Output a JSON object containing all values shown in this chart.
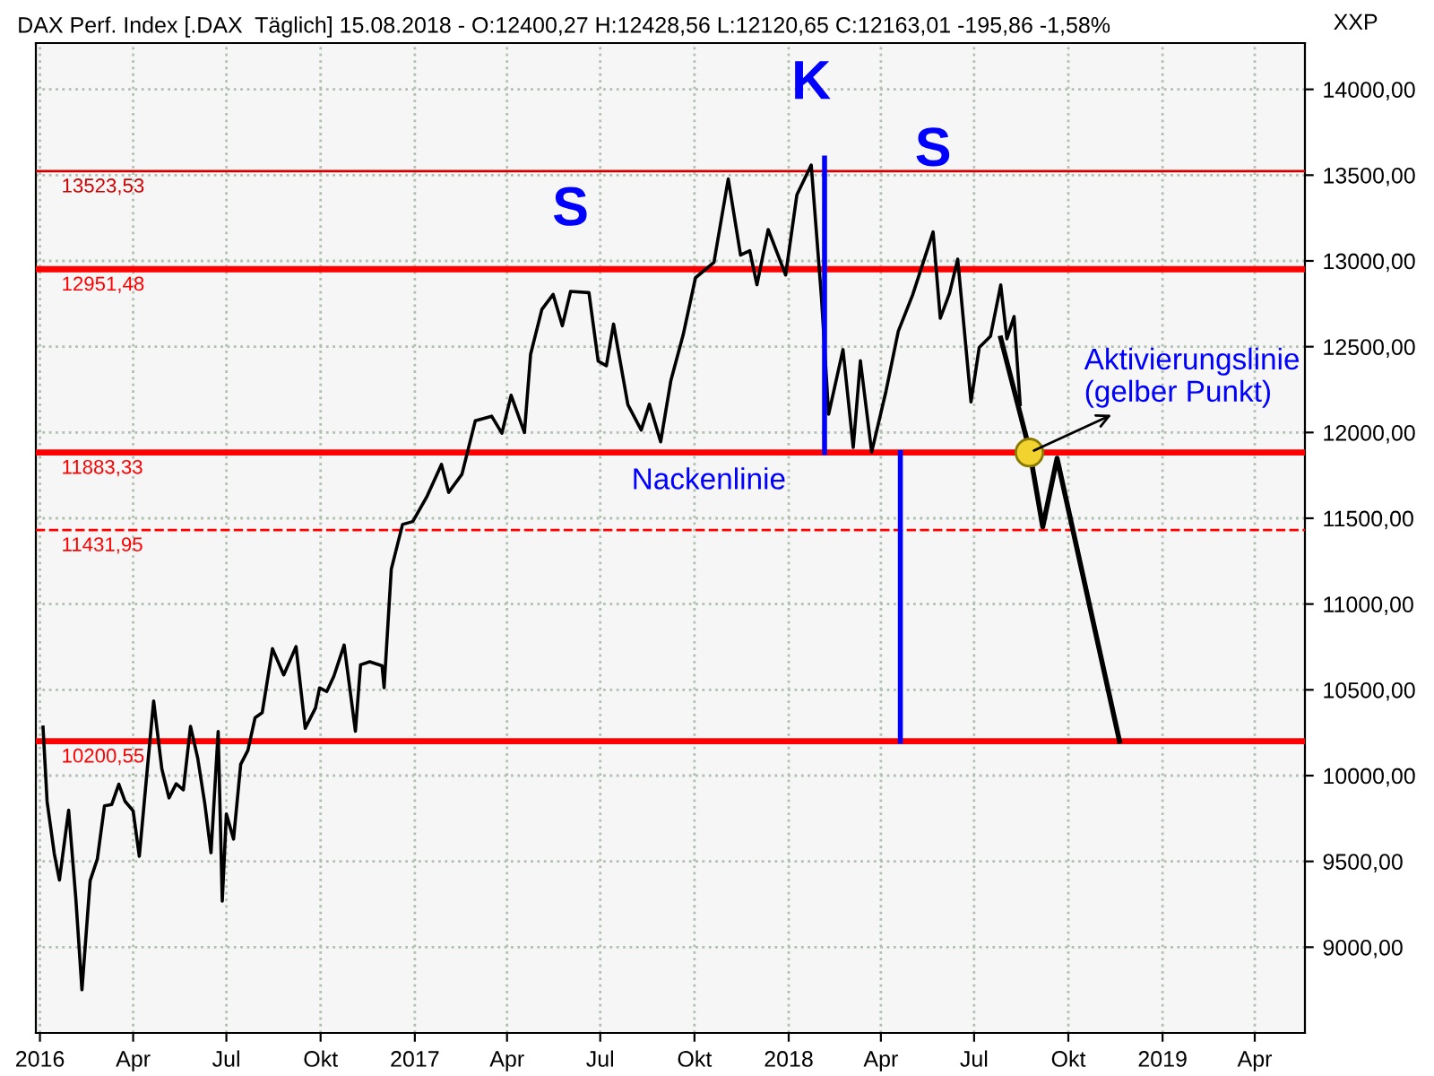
{
  "chart_data": {
    "type": "line",
    "title": "DAX Perf. Index [.DAX  Täglich] 15.08.2018 - O:12400,27 H:12428,56 L:12120,65 C:12163,01 -195,86 -1,58%",
    "ylabel": "XXP",
    "series": [
      {
        "color": "#000000",
        "x": [
          "2016-01-04",
          "2016-01-08",
          "2016-01-15",
          "2016-01-20",
          "2016-01-29",
          "2016-02-05",
          "2016-02-11",
          "2016-02-19",
          "2016-02-26",
          "2016-03-04",
          "2016-03-11",
          "2016-03-18",
          "2016-03-24",
          "2016-04-01",
          "2016-04-07",
          "2016-04-15",
          "2016-04-21",
          "2016-04-29",
          "2016-05-06",
          "2016-05-13",
          "2016-05-20",
          "2016-05-27",
          "2016-06-03",
          "2016-06-10",
          "2016-06-16",
          "2016-06-23",
          "2016-06-27",
          "2016-07-01",
          "2016-07-08",
          "2016-07-15",
          "2016-07-22",
          "2016-07-29",
          "2016-08-05",
          "2016-08-15",
          "2016-08-26",
          "2016-09-07",
          "2016-09-16",
          "2016-09-26",
          "2016-09-30",
          "2016-10-07",
          "2016-10-14",
          "2016-10-24",
          "2016-11-04",
          "2016-11-09",
          "2016-11-18",
          "2016-11-30",
          "2016-12-02",
          "2016-12-09",
          "2016-12-20",
          "2016-12-30",
          "2017-01-13",
          "2017-01-27",
          "2017-02-03",
          "2017-02-16",
          "2017-03-01",
          "2017-03-17",
          "2017-03-27",
          "2017-04-05",
          "2017-04-18",
          "2017-04-24",
          "2017-05-05",
          "2017-05-16",
          "2017-05-25",
          "2017-06-02",
          "2017-06-20",
          "2017-06-29",
          "2017-07-07",
          "2017-07-14",
          "2017-07-28",
          "2017-08-10",
          "2017-08-18",
          "2017-08-29",
          "2017-09-08",
          "2017-09-20",
          "2017-10-02",
          "2017-10-20",
          "2017-11-03",
          "2017-11-15",
          "2017-11-24",
          "2017-12-01",
          "2017-12-12",
          "2017-12-29",
          "2018-01-09",
          "2018-01-23",
          "2018-02-02",
          "2018-02-09",
          "2018-02-23",
          "2018-03-05",
          "2018-03-12",
          "2018-03-23",
          "2018-04-06",
          "2018-04-18",
          "2018-05-02",
          "2018-05-22",
          "2018-05-29",
          "2018-06-07",
          "2018-06-15",
          "2018-06-28",
          "2018-07-06",
          "2018-07-17",
          "2018-07-27",
          "2018-08-02",
          "2018-08-09",
          "2018-08-15"
        ],
        "values": [
          10283,
          9849,
          9545,
          9391,
          9798,
          9286,
          8752,
          9388,
          9513,
          9824,
          9831,
          9950,
          9851,
          9794,
          9530,
          10051,
          10435,
          10039,
          9870,
          9952,
          9917,
          10287,
          10103,
          9834,
          9551,
          10257,
          9269,
          9776,
          9630,
          10066,
          10147,
          10337,
          10367,
          10740,
          10587,
          10752,
          10276,
          10394,
          10511,
          10490,
          10580,
          10761,
          10259,
          10646,
          10664,
          10640,
          10513,
          11203,
          11464,
          11481,
          11629,
          11814,
          11651,
          11757,
          12068,
          12095,
          11996,
          12217,
          12000,
          12455,
          12717,
          12805,
          12622,
          12822,
          12815,
          12416,
          12389,
          12632,
          12162,
          12014,
          12165,
          11946,
          12304,
          12570,
          12902,
          12991,
          13478,
          13034,
          13060,
          12861,
          13183,
          12918,
          13385,
          13559,
          12785,
          12107,
          12483,
          11913,
          12418,
          11886,
          12241,
          12590,
          12802,
          13169,
          12666,
          12811,
          13010,
          12178,
          12496,
          12561,
          12860,
          12546,
          12676,
          12163
        ]
      },
      {
        "color": "#0000ff",
        "x": [
          "2018-02-05",
          "2018-02-05"
        ],
        "values": [
          11883,
          13600
        ]
      },
      {
        "color": "#0000ff",
        "x": [
          "2018-04-20",
          "2018-04-20"
        ],
        "values": [
          11883,
          10200
        ]
      },
      {
        "color": "#000000",
        "x": [
          "2018-07-27",
          "2018-08-24",
          "2018-09-06",
          "2018-09-20",
          "2018-11-20"
        ],
        "values": [
          12550,
          11900,
          11450,
          11850,
          10200
        ]
      },
      {
        "type": "scatter",
        "marker": "circle",
        "color": "#f2d22e",
        "x": [
          "2018-08-24"
        ],
        "values": [
          11883
        ]
      }
    ],
    "xlim": [
      "2015-12-28",
      "2019-05-20"
    ],
    "xticks": [
      {
        "value": "2016-01-01",
        "label": "2016"
      },
      {
        "value": "2016-04-01",
        "label": "Apr"
      },
      {
        "value": "2016-07-01",
        "label": "Jul"
      },
      {
        "value": "2016-10-01",
        "label": "Okt"
      },
      {
        "value": "2017-01-01",
        "label": "2017"
      },
      {
        "value": "2017-04-01",
        "label": "Apr"
      },
      {
        "value": "2017-07-01",
        "label": "Jul"
      },
      {
        "value": "2017-10-01",
        "label": "Okt"
      },
      {
        "value": "2018-01-01",
        "label": "2018"
      },
      {
        "value": "2018-04-01",
        "label": "Apr"
      },
      {
        "value": "2018-07-01",
        "label": "Jul"
      },
      {
        "value": "2018-10-01",
        "label": "Okt"
      },
      {
        "value": "2019-01-01",
        "label": "2019"
      },
      {
        "value": "2019-04-01",
        "label": "Apr"
      }
    ],
    "ylim": [
      8500,
      14270
    ],
    "yticks": [
      {
        "value": 9000,
        "label": "9000,00"
      },
      {
        "value": 9500,
        "label": "9500,00"
      },
      {
        "value": 10000,
        "label": "10000,00"
      },
      {
        "value": 10500,
        "label": "10500,00"
      },
      {
        "value": 11000,
        "label": "11000,00"
      },
      {
        "value": 11500,
        "label": "11500,00"
      },
      {
        "value": 12000,
        "label": "12000,00"
      },
      {
        "value": 12500,
        "label": "12500,00"
      },
      {
        "value": 13000,
        "label": "13000,00"
      },
      {
        "value": 13500,
        "label": "13500,00"
      },
      {
        "value": 14000,
        "label": "14000,00"
      }
    ],
    "ref_lines": [
      {
        "axis": "y",
        "value": 13523.53,
        "label": "13523,53",
        "color": "#d00000",
        "line_style": "solid"
      },
      {
        "axis": "y",
        "value": 12951.48,
        "label": "12951,48",
        "color": "#ff0000",
        "line_style": "solid"
      },
      {
        "axis": "y",
        "value": 11883.33,
        "label": "11883,33",
        "color": "#ff0000",
        "line_style": "solid"
      },
      {
        "axis": "y",
        "value": 11431.95,
        "label": "11431,95",
        "color": "#ff0000",
        "line_style": "dashed"
      },
      {
        "axis": "y",
        "value": 10200.55,
        "label": "10200,55",
        "color": "#ff0000",
        "line_style": "solid"
      }
    ],
    "annotations": [
      {
        "text": "S",
        "x": "2017-06-02",
        "y": 12822
      },
      {
        "text": "K",
        "x": "2018-01-23",
        "y": 13559
      },
      {
        "text": "S",
        "x": "2018-05-22",
        "y": 13169
      },
      {
        "text": "Nackenlinie",
        "x": "2017-10-15",
        "y": 11883.33
      },
      {
        "text": "Aktivierungslinie\n(gelber Punkt)",
        "x": "2018-08-24",
        "y": 11883
      }
    ],
    "grid": true,
    "marker": "none",
    "line_style": "solid"
  }
}
